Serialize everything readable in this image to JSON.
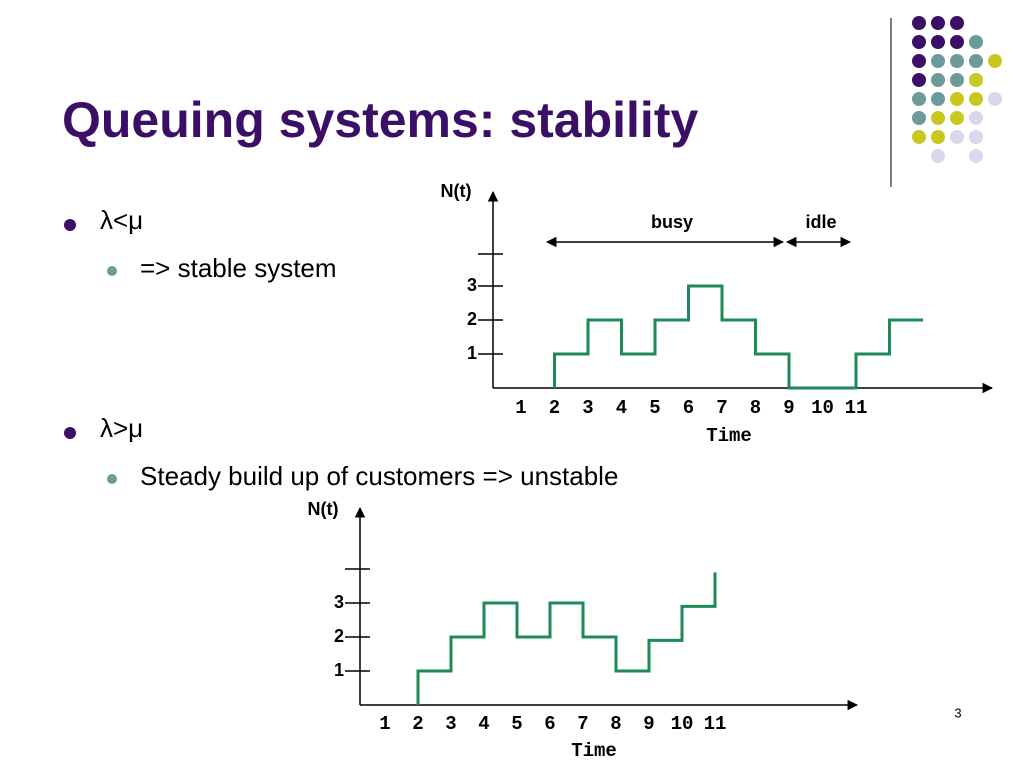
{
  "title": "Queuing systems: stability",
  "bullets": [
    {
      "text": "λ<μ",
      "sub": [
        "=> stable system"
      ]
    },
    {
      "text": "λ>μ",
      "sub": [
        "Steady build up of customers => unstable"
      ]
    }
  ],
  "page_number": "3",
  "chart_data": [
    {
      "type": "line",
      "ylabel": "N(t)",
      "xlabel": "Time",
      "color": "#1e8a57",
      "xticks": [
        1,
        2,
        3,
        4,
        5,
        6,
        7,
        8,
        9,
        10,
        11
      ],
      "yticks": [
        1,
        2,
        3
      ],
      "x": [
        2,
        3,
        4,
        5,
        6,
        7,
        8,
        9,
        11,
        12,
        13
      ],
      "values": [
        1,
        2,
        1,
        2,
        3,
        2,
        1,
        0,
        1,
        2,
        2
      ],
      "annotations": [
        "busy",
        "idle"
      ]
    },
    {
      "type": "line",
      "ylabel": "N(t)",
      "xlabel": "Time",
      "color": "#1e8a57",
      "xticks": [
        1,
        2,
        3,
        4,
        5,
        6,
        7,
        8,
        9,
        10,
        11
      ],
      "yticks": [
        1,
        2,
        3
      ],
      "x": [
        2,
        3,
        4,
        5,
        6,
        7,
        8,
        9,
        10,
        11
      ],
      "values": [
        1,
        2,
        3,
        2,
        3,
        2,
        1,
        1.9,
        2.9,
        3.9
      ]
    }
  ]
}
